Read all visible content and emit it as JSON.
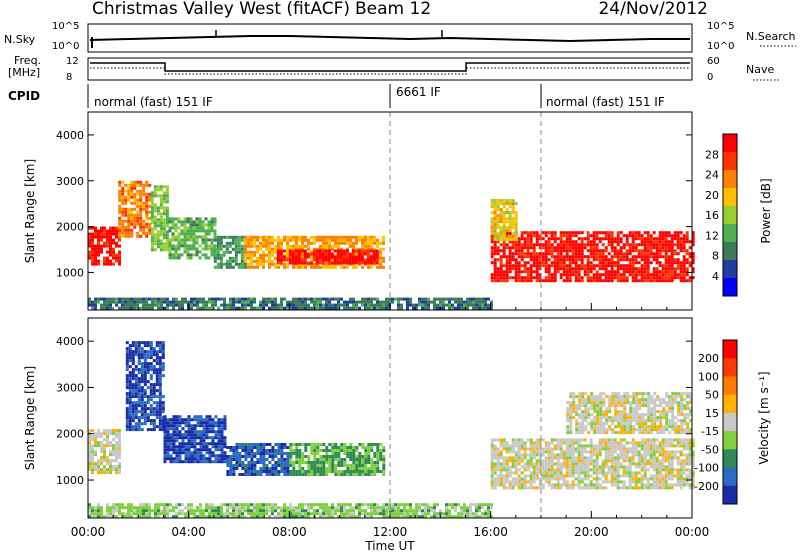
{
  "header": {
    "title": "Christmas Valley West (fitACF)",
    "beam": "Beam 12",
    "date": "24/Nov/2012"
  },
  "strip_labels": {
    "nsky": "N.Sky",
    "nsky_ticks": [
      "10^5",
      "10^0"
    ],
    "nsearch": "N.Search",
    "nsearch_ticks": [
      "10^5",
      "10^0"
    ],
    "freq_line1": "Freq.",
    "freq_line2": "[MHz]",
    "freq_ticks": [
      "12",
      "8"
    ],
    "nave": "Nave",
    "nave_ticks": [
      "60",
      "0"
    ],
    "cpid": "CPID"
  },
  "cpid_segments": [
    {
      "label": "normal (fast) 151 IF",
      "start_hour": 0
    },
    {
      "label": "6661 IF",
      "start_hour": 12
    },
    {
      "label": "normal (fast) 151 IF",
      "start_hour": 18
    }
  ],
  "colors": {
    "power_scale": [
      "#0000ff",
      "#1f3ea0",
      "#3d7a5a",
      "#4caf50",
      "#9acd32",
      "#ffc000",
      "#ff7f00",
      "#ff3300",
      "#ff0000"
    ],
    "velocity_scale": [
      "#1a2aa8",
      "#2b6bbf",
      "#2e8b57",
      "#7fcf3f",
      "#c8c8c8",
      "#ffb000",
      "#ff7a00",
      "#ff3a00",
      "#ff0000"
    ]
  },
  "chart_data": [
    {
      "type": "heatmap",
      "name": "power",
      "ylabel": "Slant Range [km]",
      "ylim": [
        180,
        4500
      ],
      "yticks": [
        "1000",
        "2000",
        "3000",
        "4000"
      ],
      "xlim": [
        0,
        24
      ],
      "xticks": [
        "00:00",
        "04:00",
        "08:00",
        "12:00",
        "16:00",
        "20:00",
        "00:00"
      ],
      "colorbar": {
        "label": "Power [dB]",
        "ticks": [
          "4",
          "8",
          "12",
          "16",
          "20",
          "24",
          "28"
        ],
        "range": [
          0,
          30
        ]
      },
      "regions": [
        {
          "t0": 0.0,
          "t1": 1.2,
          "r0": 1150,
          "r1": 2000,
          "value": 28
        },
        {
          "t0": 1.2,
          "t1": 2.5,
          "r0": 1800,
          "r1": 3000,
          "value": 22
        },
        {
          "t0": 2.5,
          "t1": 3.2,
          "r0": 1500,
          "r1": 2900,
          "value": 14
        },
        {
          "t0": 3.2,
          "t1": 5.0,
          "r0": 1300,
          "r1": 2200,
          "value": 12
        },
        {
          "t0": 5.0,
          "t1": 6.2,
          "r0": 1100,
          "r1": 1800,
          "value": 10
        },
        {
          "t0": 6.2,
          "t1": 11.8,
          "r0": 1100,
          "r1": 1800,
          "value": 20
        },
        {
          "t0": 7.5,
          "t1": 11.5,
          "r0": 1200,
          "r1": 1500,
          "value": 28
        },
        {
          "t0": 16.0,
          "t1": 24.0,
          "r0": 800,
          "r1": 1900,
          "value": 28
        },
        {
          "t0": 16.0,
          "t1": 17.0,
          "r0": 1700,
          "r1": 2600,
          "value": 18
        },
        {
          "t0": 0.0,
          "t1": 16.0,
          "r0": 200,
          "r1": 450,
          "value": 8
        }
      ]
    },
    {
      "type": "heatmap",
      "name": "velocity",
      "ylabel": "Slant Range [km]",
      "ylim": [
        180,
        4500
      ],
      "yticks": [
        "1000",
        "2000",
        "3000",
        "4000"
      ],
      "xlabel": "Time UT",
      "xlim": [
        0,
        24
      ],
      "xticks": [
        "00:00",
        "04:00",
        "08:00",
        "12:00",
        "16:00",
        "20:00",
        "00:00"
      ],
      "colorbar": {
        "label": "Velocity [m s⁻¹]",
        "ticks": [
          "200",
          "100",
          "50",
          "15",
          "-15",
          "-50",
          "-100",
          "-200"
        ],
        "range": [
          -250,
          250
        ]
      },
      "regions": [
        {
          "t0": 0.0,
          "t1": 1.2,
          "r0": 1150,
          "r1": 2100,
          "value": 0
        },
        {
          "t0": 1.5,
          "t1": 3.0,
          "r0": 2100,
          "r1": 4000,
          "value": -200
        },
        {
          "t0": 3.0,
          "t1": 5.5,
          "r0": 1400,
          "r1": 2400,
          "value": -200
        },
        {
          "t0": 5.5,
          "t1": 8.0,
          "r0": 1100,
          "r1": 1800,
          "value": -180
        },
        {
          "t0": 8.0,
          "t1": 11.8,
          "r0": 1150,
          "r1": 1800,
          "value": -80
        },
        {
          "t0": 16.0,
          "t1": 24.0,
          "r0": 800,
          "r1": 1900,
          "value": 0
        },
        {
          "t0": 19.0,
          "t1": 24.0,
          "r0": 2000,
          "r1": 2900,
          "value": 0
        },
        {
          "t0": 0.0,
          "t1": 16.0,
          "r0": 200,
          "r1": 500,
          "value": -50
        }
      ]
    }
  ]
}
